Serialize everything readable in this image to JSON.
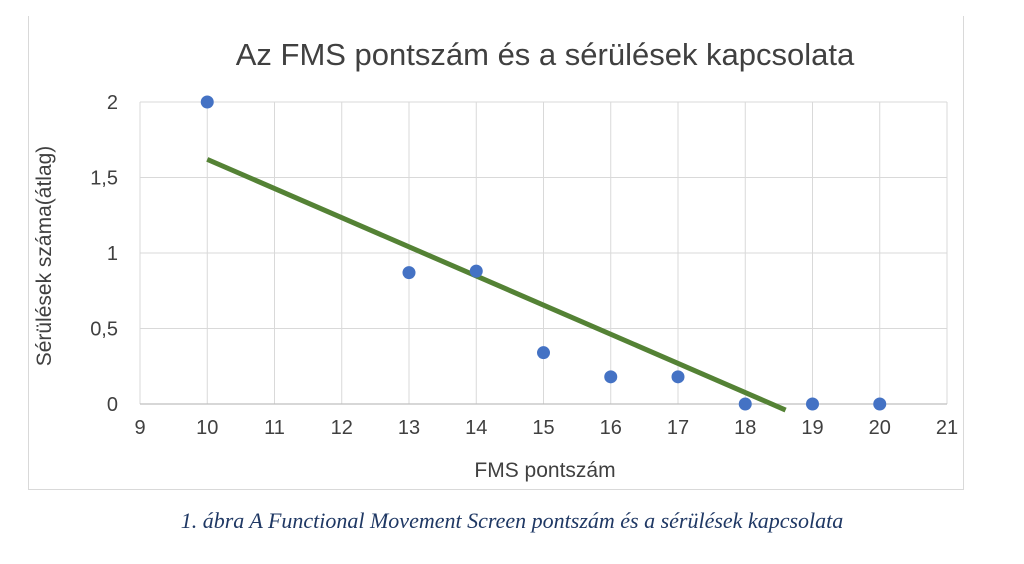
{
  "chart_data": {
    "type": "scatter",
    "title": "Az FMS pontszám és a sérülések kapcsolata",
    "xlabel": "FMS pontszám",
    "ylabel": "Sérülések száma(átlag)",
    "xlim": [
      9,
      21
    ],
    "ylim": [
      0,
      2
    ],
    "x_ticks": [
      "9",
      "10",
      "11",
      "12",
      "13",
      "14",
      "15",
      "16",
      "17",
      "18",
      "19",
      "20",
      "21"
    ],
    "y_ticks": [
      "0",
      "0,5",
      "1",
      "1,5",
      "2"
    ],
    "grid": true,
    "series": [
      {
        "points": [
          {
            "x": 10,
            "y": 2.0
          },
          {
            "x": 13,
            "y": 0.87
          },
          {
            "x": 14,
            "y": 0.88
          },
          {
            "x": 15,
            "y": 0.34
          },
          {
            "x": 16,
            "y": 0.18
          },
          {
            "x": 17,
            "y": 0.18
          },
          {
            "x": 18,
            "y": 0.0
          },
          {
            "x": 19,
            "y": 0.0
          },
          {
            "x": 20,
            "y": 0.0
          }
        ],
        "color": "#4472c4"
      }
    ],
    "trendline": {
      "type": "linear",
      "from": {
        "x": 10,
        "y": 1.62
      },
      "to": {
        "x": 18.6,
        "y": -0.04
      },
      "color": "#548235"
    }
  },
  "caption": "1. ábra A Functional Movement Screen pontszám és a sérülések kapcsolata"
}
